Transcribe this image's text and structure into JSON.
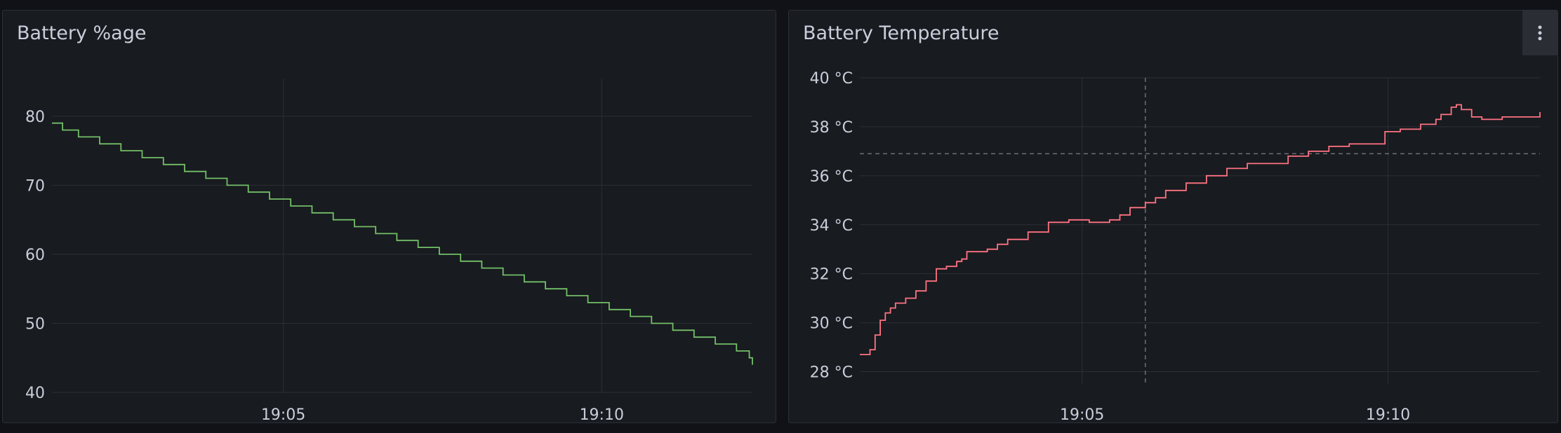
{
  "panels": {
    "left": {
      "title": "Battery %age"
    },
    "right": {
      "title": "Battery Temperature",
      "menu_icon": "vertical-dots-menu-icon"
    }
  },
  "colors": {
    "background": "#111217",
    "panel": "#181b1f",
    "grid": "#2c2f36",
    "text": "#ccccdc",
    "battery_series": "#73bf69",
    "temperature_series": "#ff7383",
    "threshold_line": "#6e6e78",
    "crosshair": "#6e6e78"
  },
  "chart_data": [
    {
      "type": "line",
      "title": "Battery %age",
      "line_style": "step",
      "x_unit": "minutes",
      "xlim": [
        "19:01:22",
        "19:12:22"
      ],
      "ylim": [
        40,
        81
      ],
      "x_ticks": [
        "19:05",
        "19:10"
      ],
      "y_ticks": [
        "40",
        "50",
        "60",
        "70",
        "80"
      ],
      "grid": true,
      "legend": "none",
      "series": [
        {
          "color": "#73bf69",
          "x": [
            "19:01:22",
            "19:01:32",
            "19:01:47",
            "19:02:07",
            "19:02:27",
            "19:02:47",
            "19:03:07",
            "19:03:27",
            "19:03:47",
            "19:04:07",
            "19:04:27",
            "19:04:47",
            "19:05:07",
            "19:05:27",
            "19:05:47",
            "19:06:07",
            "19:06:27",
            "19:06:47",
            "19:07:07",
            "19:07:27",
            "19:07:47",
            "19:08:07",
            "19:08:27",
            "19:08:47",
            "19:09:07",
            "19:09:27",
            "19:09:47",
            "19:10:07",
            "19:10:27",
            "19:10:47",
            "19:11:07",
            "19:11:27",
            "19:11:47",
            "19:12:07",
            "19:12:19",
            "19:12:22"
          ],
          "values": [
            79,
            78,
            77,
            76,
            75,
            74,
            73,
            72,
            71,
            70,
            69,
            68,
            67,
            66,
            65,
            64,
            63,
            62,
            61,
            60,
            59,
            58,
            57,
            56,
            55,
            54,
            53,
            52,
            51,
            50,
            49,
            48,
            47,
            46,
            45,
            44
          ]
        }
      ]
    },
    {
      "type": "line",
      "title": "Battery Temperature",
      "line_style": "step",
      "xlim": [
        "19:01:22",
        "19:12:29"
      ],
      "ylim": [
        27.5,
        40
      ],
      "x_ticks": [
        "19:05",
        "19:10"
      ],
      "y_ticks": [
        "28 °C",
        "30 °C",
        "32 °C",
        "34 °C",
        "36 °C",
        "38 °C",
        "40 °C"
      ],
      "grid": true,
      "legend": "none",
      "threshold": 36.9,
      "crosshair_x": "19:06:02",
      "series": [
        {
          "color": "#ff7383",
          "x": [
            "19:01:22",
            "19:01:32",
            "19:01:37",
            "19:01:42",
            "19:01:47",
            "19:01:52",
            "19:01:57",
            "19:02:07",
            "19:02:17",
            "19:02:27",
            "19:02:37",
            "19:02:47",
            "19:02:57",
            "19:03:02",
            "19:03:07",
            "19:03:12",
            "19:03:27",
            "19:03:37",
            "19:03:47",
            "19:04:07",
            "19:04:27",
            "19:04:47",
            "19:05:07",
            "19:05:17",
            "19:05:27",
            "19:05:37",
            "19:05:47",
            "19:06:02",
            "19:06:12",
            "19:06:22",
            "19:06:42",
            "19:07:02",
            "19:07:22",
            "19:07:42",
            "19:08:02",
            "19:08:22",
            "19:08:42",
            "19:09:02",
            "19:09:22",
            "19:09:32",
            "19:09:52",
            "19:09:57",
            "19:10:02",
            "19:10:12",
            "19:10:32",
            "19:10:47",
            "19:10:52",
            "19:11:02",
            "19:11:07",
            "19:11:12",
            "19:11:22",
            "19:11:32",
            "19:11:52",
            "19:12:12",
            "19:12:29"
          ],
          "values": [
            28.7,
            28.9,
            29.5,
            30.1,
            30.4,
            30.6,
            30.8,
            31.0,
            31.3,
            31.7,
            32.2,
            32.3,
            32.5,
            32.6,
            32.9,
            32.9,
            33.0,
            33.2,
            33.4,
            33.7,
            34.1,
            34.2,
            34.1,
            34.1,
            34.2,
            34.4,
            34.7,
            34.9,
            35.1,
            35.4,
            35.7,
            36.0,
            36.3,
            36.5,
            36.5,
            36.8,
            37.0,
            37.2,
            37.3,
            37.3,
            37.3,
            37.8,
            37.8,
            37.9,
            38.1,
            38.3,
            38.5,
            38.8,
            38.9,
            38.7,
            38.4,
            38.3,
            38.4,
            38.4,
            38.6
          ]
        }
      ]
    }
  ]
}
